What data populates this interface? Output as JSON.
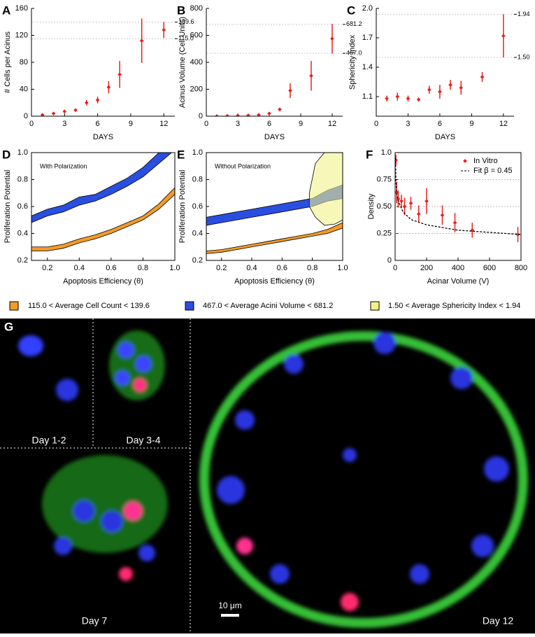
{
  "chart_data": [
    {
      "type": "scatter",
      "panel": "A",
      "ylabel": "# Cells per Acinus",
      "xlabel": "DAYS",
      "frame": "axes",
      "xlim": [
        0,
        13
      ],
      "xticks": [
        0,
        3,
        6,
        9,
        12
      ],
      "ylim": [
        0,
        160
      ],
      "yticks": [
        0,
        40,
        80,
        120,
        160
      ],
      "range_marks": [
        139.6,
        {
          "value": 115,
          "label": "115.0"
        }
      ],
      "series": [
        {
          "color": "#e8201e",
          "x": [
            1,
            2,
            3,
            4,
            5,
            6,
            7,
            8,
            10,
            12
          ],
          "values": [
            2,
            4,
            7,
            9,
            20,
            24,
            43,
            62,
            112,
            128
          ],
          "errors": [
            1,
            1,
            1,
            1,
            4,
            5,
            9,
            20,
            33,
            12
          ]
        }
      ]
    },
    {
      "type": "scatter",
      "panel": "B",
      "ylabel": "Acinus Volume (Cell Units)",
      "xlabel": "DAYS",
      "frame": "axes",
      "xlim": [
        0,
        13
      ],
      "xticks": [
        0,
        3,
        6,
        9,
        12
      ],
      "ylim": [
        0,
        800
      ],
      "yticks": [
        0,
        200,
        400,
        600,
        800
      ],
      "range_marks": [
        681.2,
        {
          "value": 467,
          "label": "467.0"
        }
      ],
      "series": [
        {
          "color": "#e8201e",
          "x": [
            1,
            2,
            3,
            4,
            5,
            6,
            7,
            8,
            10,
            12
          ],
          "values": [
            0,
            2,
            4,
            6,
            10,
            20,
            50,
            190,
            300,
            575
          ],
          "errors": [
            1,
            1,
            2,
            3,
            4,
            6,
            12,
            55,
            110,
            110
          ]
        }
      ]
    },
    {
      "type": "scatter",
      "panel": "C",
      "ylabel": "Sphericity Index",
      "xlabel": "DAYS",
      "frame": "axes",
      "xlim": [
        0,
        13
      ],
      "xticks": [
        0,
        3,
        6,
        9,
        12
      ],
      "ylim": [
        0.9,
        2.0
      ],
      "yticks": [
        1.1,
        1.4,
        1.7,
        {
          "value": 2,
          "label": "2.0"
        }
      ],
      "range_marks": [
        1.94,
        {
          "value": 1.5,
          "label": "1.50"
        }
      ],
      "series": [
        {
          "color": "#e8201e",
          "x": [
            1,
            2,
            3,
            4,
            5,
            6,
            7,
            8,
            10,
            12
          ],
          "values": [
            1.08,
            1.1,
            1.08,
            1.07,
            1.17,
            1.15,
            1.22,
            1.19,
            1.3,
            1.72
          ],
          "errors": [
            0.03,
            0.04,
            0.03,
            0.02,
            0.04,
            0.07,
            0.05,
            0.07,
            0.05,
            0.22
          ]
        }
      ]
    },
    {
      "type": "band",
      "panel": "D",
      "ylabel": "Proliferation Potential",
      "xlabel": "Apoptosis Efficiency (θ)",
      "frame": "box",
      "annotation": "With Polarization",
      "xlim": [
        0.1,
        1.0
      ],
      "xticks": [
        0.2,
        0.4,
        0.6,
        0.8,
        {
          "value": 1,
          "label": "1.0"
        }
      ],
      "ylim": [
        0.2,
        1.0
      ],
      "yticks": [
        0.2,
        0.4,
        0.6,
        0.8,
        {
          "value": 1,
          "label": "1.0"
        }
      ],
      "series": [
        {
          "color": "#2a4ee0",
          "x": [
            0.1,
            0.2,
            0.3,
            0.4,
            0.5,
            0.6,
            0.7,
            0.8,
            0.9,
            1.0
          ],
          "lower": [
            0.48,
            0.53,
            0.56,
            0.61,
            0.64,
            0.69,
            0.75,
            0.82,
            0.92,
            1.02
          ],
          "upper": [
            0.53,
            0.58,
            0.61,
            0.67,
            0.69,
            0.75,
            0.81,
            0.89,
            1.0,
            1.1
          ]
        },
        {
          "color": "#f39a2a",
          "x": [
            0.1,
            0.2,
            0.3,
            0.4,
            0.5,
            0.6,
            0.7,
            0.8,
            0.9,
            1.0
          ],
          "lower": [
            0.27,
            0.27,
            0.29,
            0.33,
            0.36,
            0.4,
            0.45,
            0.5,
            0.58,
            0.69
          ],
          "upper": [
            0.3,
            0.3,
            0.32,
            0.36,
            0.39,
            0.43,
            0.48,
            0.53,
            0.62,
            0.74
          ]
        }
      ]
    },
    {
      "type": "band",
      "panel": "E",
      "ylabel": "Proliferation Potential",
      "xlabel": "Apoptosis Efficiency (θ)",
      "frame": "box",
      "annotation": "Without Polarization",
      "xlim": [
        0.1,
        1.0
      ],
      "xticks": [
        0.2,
        0.4,
        0.6,
        0.8,
        {
          "value": 1,
          "label": "1.0"
        }
      ],
      "ylim": [
        0.2,
        1.0
      ],
      "yticks": [
        0.2,
        0.4,
        0.6,
        0.8,
        {
          "value": 1,
          "label": "1.0"
        }
      ],
      "series": [
        {
          "color": "#2a4ee0",
          "x": [
            0.1,
            0.2,
            0.3,
            0.4,
            0.5,
            0.6,
            0.7,
            0.8,
            0.9,
            1.0
          ],
          "lower": [
            0.46,
            0.48,
            0.5,
            0.52,
            0.54,
            0.56,
            0.58,
            0.6,
            0.64,
            0.66
          ],
          "upper": [
            0.52,
            0.54,
            0.56,
            0.58,
            0.6,
            0.62,
            0.64,
            0.66,
            0.72,
            0.76
          ]
        },
        {
          "color": "#f39a2a",
          "x": [
            0.1,
            0.2,
            0.3,
            0.4,
            0.5,
            0.6,
            0.7,
            0.8,
            0.9,
            1.0
          ],
          "lower": [
            0.25,
            0.26,
            0.28,
            0.3,
            0.32,
            0.34,
            0.36,
            0.38,
            0.4,
            0.44
          ],
          "upper": [
            0.27,
            0.28,
            0.3,
            0.32,
            0.34,
            0.36,
            0.38,
            0.4,
            0.43,
            0.48
          ]
        },
        {
          "color": "#f2f28a",
          "x": [
            0.78,
            0.82,
            0.88,
            0.95,
            1.0
          ],
          "lower": [
            0.6,
            0.52,
            0.46,
            0.47,
            0.5
          ],
          "upper": [
            0.7,
            0.92,
            1.0,
            1.0,
            1.0
          ]
        }
      ]
    },
    {
      "type": "scatter",
      "panel": "F",
      "ylabel": "Density",
      "xlabel": "Acinar Volume (V)",
      "frame": "box",
      "grid": true,
      "legend": "upper right",
      "xlim": [
        0,
        800
      ],
      "xticks": [
        0,
        200,
        400,
        600,
        800
      ],
      "ylim": [
        0,
        1.0
      ],
      "yticks": [
        0,
        0.25,
        {
          "value": 0.5,
          "label": "0.50"
        },
        0.75,
        {
          "value": 1,
          "label": "1.0"
        }
      ],
      "series": [
        {
          "name": "In Vitro",
          "color": "#e8201e",
          "x": [
            5,
            10,
            20,
            40,
            60,
            100,
            150,
            200,
            300,
            380,
            490,
            780
          ],
          "values": [
            0.93,
            0.63,
            0.57,
            0.55,
            0.5,
            0.53,
            0.43,
            0.55,
            0.42,
            0.35,
            0.28,
            0.24
          ],
          "errors": [
            0.05,
            0.1,
            0.08,
            0.06,
            0.08,
            0.06,
            0.08,
            0.12,
            0.09,
            0.09,
            0.07,
            0.07
          ]
        },
        {
          "name": "Fit  β = 0.45",
          "color": "#000000",
          "line": "dashed",
          "x": [
            2,
            5,
            10,
            20,
            50,
            100,
            200,
            400,
            800
          ],
          "values": [
            0.95,
            0.75,
            0.62,
            0.55,
            0.45,
            0.38,
            0.33,
            0.28,
            0.24
          ]
        }
      ]
    }
  ],
  "legend": [
    {
      "label": "115.0 < Average Cell Count < 139.6",
      "color": "#f39a2a"
    },
    {
      "label": "467.0 < Average Acini Volume <  681.2",
      "color": "#2a4ee0"
    },
    {
      "label": "1.50 < Average Sphericity Index < 1.94",
      "color": "#f2f28a"
    }
  ],
  "figure_g": {
    "panel": "G",
    "captions": [
      "Day 1-2",
      "Day 3-4",
      "Day 7",
      "Day 12"
    ],
    "scale_bar": "10 μm"
  }
}
